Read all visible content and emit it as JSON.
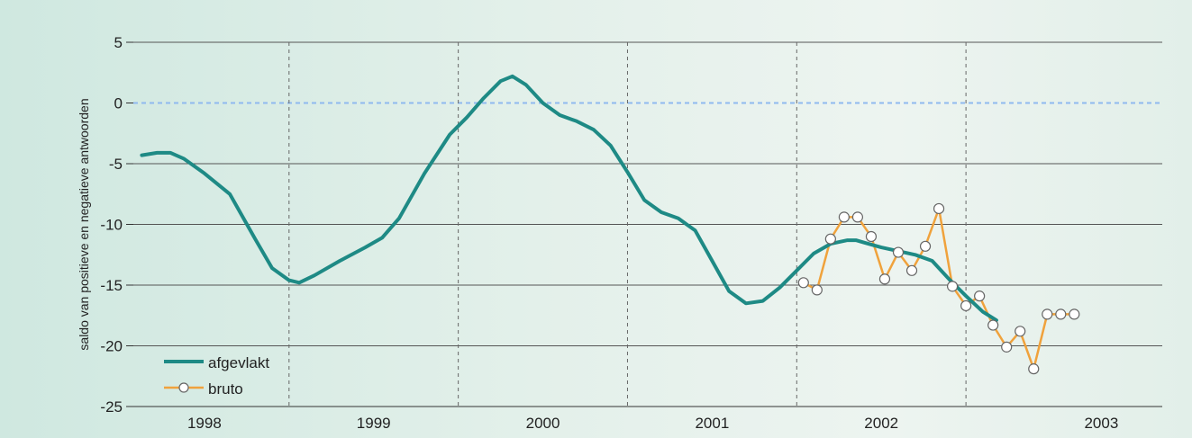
{
  "chart_data": {
    "type": "line",
    "ylabel": "saldo van positieve en negatieve antwoorden",
    "xlabel": "",
    "ylim": [
      -25,
      5
    ],
    "yticks": [
      5,
      0,
      -5,
      -10,
      -15,
      -20,
      -25
    ],
    "xlim": [
      1997.58,
      2003.66
    ],
    "year_labels": [
      {
        "label": "1998",
        "x": 1998.0
      },
      {
        "label": "1999",
        "x": 1999.0
      },
      {
        "label": "2000",
        "x": 2000.0
      },
      {
        "label": "2001",
        "x": 2001.0
      },
      {
        "label": "2002",
        "x": 2002.0
      },
      {
        "label": "2003",
        "x": 2003.3
      }
    ],
    "year_boundaries": [
      1998.5,
      1999.5,
      2000.5,
      2001.5,
      2002.5
    ],
    "grid": true,
    "zero_line": true,
    "legend_position": "bottom-left",
    "colors": {
      "afgevlakt": "#1e8a85",
      "bruto": "#f0a23c",
      "zero": "#8fb9ef",
      "grid": "#555555"
    },
    "series": [
      {
        "name": "afgevlakt",
        "marker": "none",
        "x": [
          1997.63,
          1997.72,
          1997.8,
          1997.88,
          1998.0,
          1998.15,
          1998.3,
          1998.4,
          1998.5,
          1998.56,
          1998.65,
          1998.8,
          1998.95,
          1999.05,
          1999.15,
          1999.3,
          1999.45,
          1999.55,
          1999.65,
          1999.75,
          1999.82,
          1999.9,
          2000.0,
          2000.1,
          2000.2,
          2000.3,
          2000.4,
          2000.5,
          2000.6,
          2000.7,
          2000.8,
          2000.9,
          2001.0,
          2001.1,
          2001.2,
          2001.3,
          2001.4,
          2001.5,
          2001.6,
          2001.7,
          2001.8,
          2001.85,
          2001.9,
          2002.0,
          2002.1,
          2002.2,
          2002.3,
          2002.4,
          2002.5,
          2002.6,
          2002.68
        ],
        "y": [
          -4.3,
          -4.1,
          -4.1,
          -4.6,
          -5.8,
          -7.5,
          -11.2,
          -13.6,
          -14.6,
          -14.8,
          -14.2,
          -13.0,
          -11.9,
          -11.1,
          -9.5,
          -5.8,
          -2.6,
          -1.2,
          0.4,
          1.8,
          2.2,
          1.5,
          0.0,
          -1.0,
          -1.5,
          -2.2,
          -3.5,
          -5.7,
          -8.0,
          -9.0,
          -9.5,
          -10.5,
          -13.0,
          -15.5,
          -16.5,
          -16.3,
          -15.2,
          -13.8,
          -12.4,
          -11.6,
          -11.3,
          -11.3,
          -11.5,
          -11.9,
          -12.2,
          -12.5,
          -13.0,
          -14.5,
          -15.9,
          -17.2,
          -17.9
        ]
      },
      {
        "name": "bruto",
        "marker": "circle",
        "x": [
          2001.54,
          2001.62,
          2001.7,
          2001.78,
          2001.86,
          2001.94,
          2002.02,
          2002.1,
          2002.18,
          2002.26,
          2002.34,
          2002.42,
          2002.5,
          2002.58,
          2002.66,
          2002.74,
          2002.82,
          2002.9,
          2002.98,
          2003.06,
          2003.14
        ],
        "y": [
          -14.8,
          -15.4,
          -11.2,
          -9.4,
          -9.4,
          -11.0,
          -14.5,
          -12.3,
          -13.8,
          -11.8,
          -8.7,
          -15.1,
          -16.7,
          -15.9,
          -18.3,
          -20.1,
          -18.8,
          -21.9,
          -17.4,
          -17.4,
          -17.4
        ]
      }
    ]
  }
}
